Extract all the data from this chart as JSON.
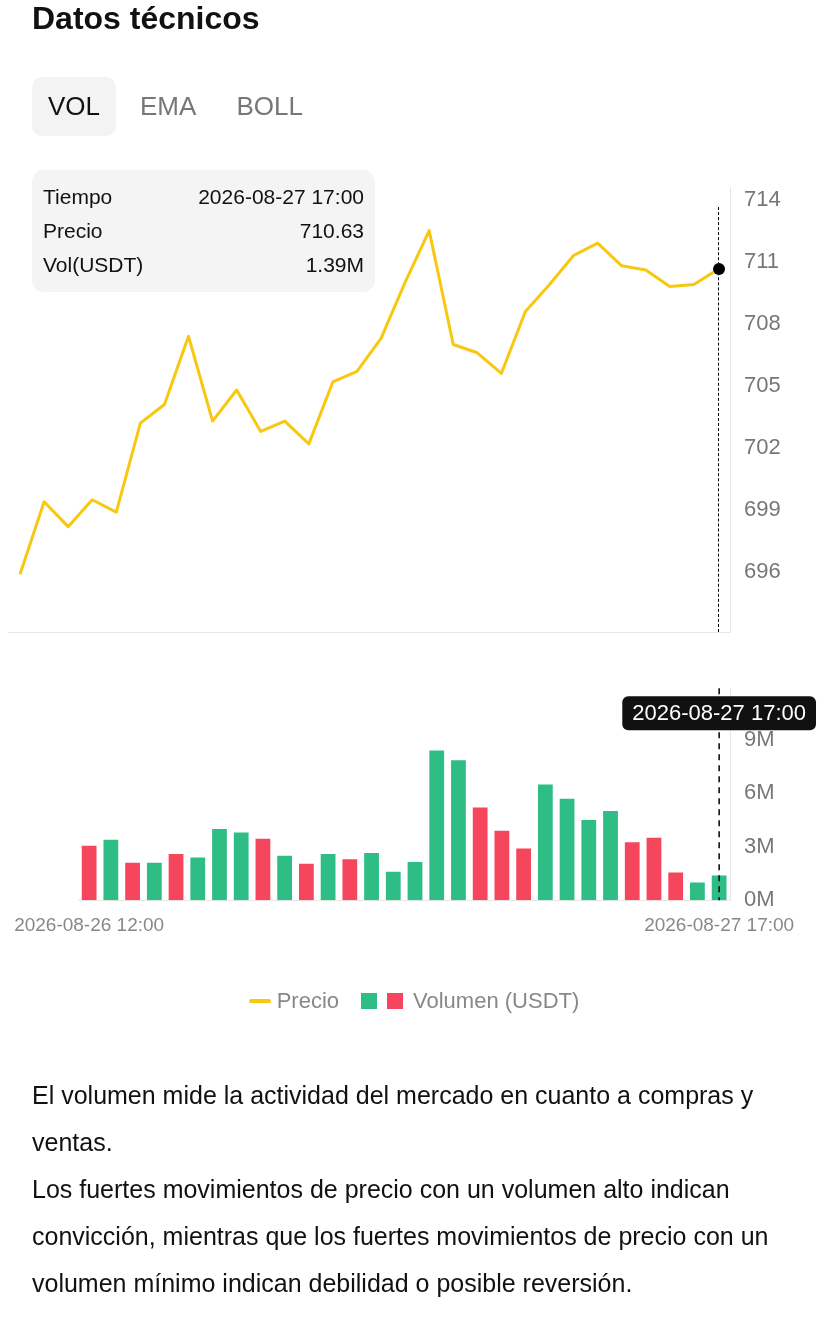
{
  "chart_data": [
    {
      "type": "line",
      "title": "Datos técnicos",
      "categories": [
        null,
        null,
        null,
        null,
        null,
        null,
        null,
        null,
        null,
        null,
        null,
        null,
        null,
        null,
        null,
        null,
        null,
        null,
        null,
        null,
        null,
        null,
        null,
        null,
        null,
        null,
        null,
        null,
        null,
        null
      ],
      "series": [
        {
          "name": "Precio",
          "color": "#f8c811",
          "values": [
            695.9,
            699.4,
            698.2,
            699.5,
            698.9,
            703.2,
            704.1,
            707.4,
            703.3,
            704.8,
            702.8,
            703.3,
            702.2,
            705.2,
            705.7,
            707.3,
            710.0,
            712.5,
            707.0,
            706.6,
            705.6,
            708.6,
            709.9,
            711.3,
            711.9,
            710.8,
            710.6,
            709.8,
            709.9,
            710.63
          ]
        }
      ],
      "ylim": [
        693.1,
        714.6
      ],
      "yticks": [
        696,
        699,
        702,
        705,
        708,
        711,
        714
      ],
      "marker": "none",
      "line_style": "solid",
      "legend": "bottom",
      "annotations": [
        "VOL",
        "EMA",
        "BOLL",
        "Tiempo",
        "2026-08-27 17:00",
        "Precio",
        "710.63",
        "Vol(USDT)",
        "1.39M"
      ]
    },
    {
      "type": "bar",
      "categories": [
        "2026-08-26 12:00",
        null,
        null,
        null,
        null,
        null,
        null,
        null,
        null,
        null,
        null,
        null,
        null,
        null,
        null,
        null,
        null,
        null,
        null,
        null,
        null,
        null,
        null,
        null,
        null,
        null,
        null,
        null,
        null,
        "2026-08-27 17:00"
      ],
      "series": [
        {
          "name": "Volumen (USDT)",
          "colors": [
            "#f6465d",
            "#2ebd85",
            "#f6465d",
            "#2ebd85",
            "#f6465d",
            "#2ebd85",
            "#2ebd85",
            "#2ebd85",
            "#f6465d",
            "#2ebd85",
            "#f6465d",
            "#2ebd85",
            "#f6465d",
            "#2ebd85",
            "#2ebd85",
            "#2ebd85",
            "#2ebd85",
            "#2ebd85",
            "#f6465d",
            "#f6465d",
            "#f6465d",
            "#2ebd85",
            "#2ebd85",
            "#2ebd85",
            "#2ebd85",
            "#f6465d",
            "#f6465d",
            "#f6465d",
            "#2ebd85",
            "#2ebd85"
          ],
          "values": [
            3.05,
            3.4,
            2.1,
            2.1,
            2.6,
            2.4,
            4.0,
            3.8,
            3.45,
            2.5,
            2.05,
            2.6,
            2.3,
            2.65,
            1.6,
            2.15,
            8.4,
            7.85,
            5.2,
            3.9,
            2.9,
            6.5,
            5.7,
            4.5,
            5.0,
            3.25,
            3.5,
            1.55,
            1.0,
            1.39
          ]
        }
      ],
      "ylim": [
        0,
        11.9
      ],
      "yticks": [
        {
          "value": 0,
          "label": "0M"
        },
        {
          "value": 3,
          "label": "3M"
        },
        {
          "value": 6,
          "label": "6M"
        },
        {
          "value": 9,
          "label": "9M"
        }
      ],
      "ref_lines": [
        {
          "axis": "x",
          "value": "2026-08-27 17:00",
          "label": "2026-08-27 17:00",
          "line_style": "dashed",
          "color": "#000000"
        }
      ],
      "legend": "bottom",
      "annotations": [
        "El volumen mide la actividad del mercado en cuanto a compras y ventas.",
        "Los fuertes movimientos de precio con un volumen alto indican convicción, mientras que los fuertes movimientos de precio con un volumen mínimo indican debilidad o posible reversión."
      ]
    }
  ]
}
